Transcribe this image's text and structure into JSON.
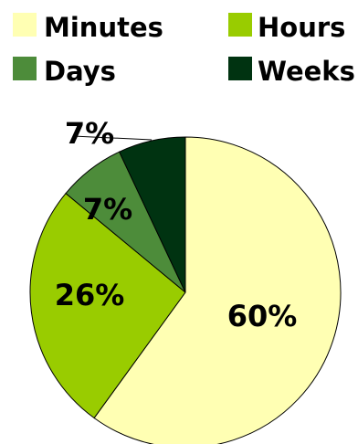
{
  "chart_data": {
    "type": "pie",
    "title": "",
    "legend_placement": "top",
    "start_angle_deg": 0,
    "direction": "clockwise",
    "slices": [
      {
        "label": "Minutes",
        "value": 60,
        "display": "60%",
        "color": "#FFFFB3"
      },
      {
        "label": "Hours",
        "value": 26,
        "display": "26%",
        "color": "#99CC00"
      },
      {
        "label": "Days",
        "value": 7,
        "display": "7%",
        "color": "#4D8C3A"
      },
      {
        "label": "Weeks",
        "value": 7,
        "display": "7%",
        "color": "#003311"
      }
    ]
  }
}
